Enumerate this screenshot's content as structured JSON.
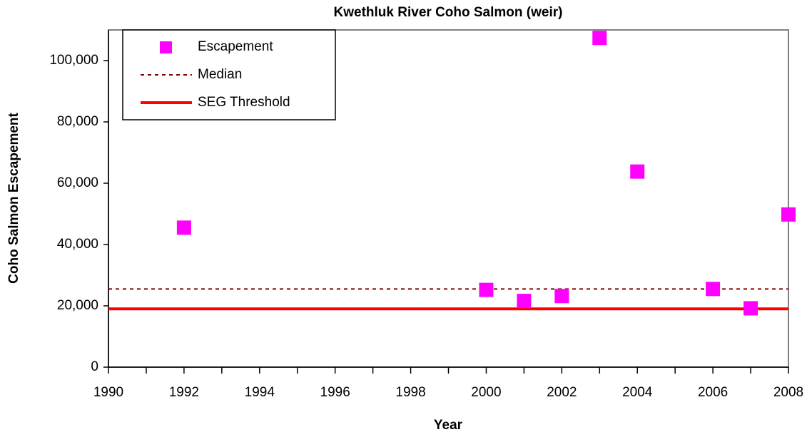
{
  "chart_data": {
    "type": "scatter",
    "title": "Kwethluk River Coho Salmon (weir)",
    "x_label": "Year",
    "y_label": "Coho Salmon Escapement",
    "xlim": [
      1990,
      2008
    ],
    "xticks": [
      1990,
      1992,
      1994,
      1996,
      1998,
      2000,
      2002,
      2004,
      2006,
      2008
    ],
    "ylim": [
      0,
      110000
    ],
    "yticks": [
      0,
      {
        "value": 20000,
        "label": "20,000"
      },
      {
        "value": 40000,
        "label": "40,000"
      },
      {
        "value": 60000,
        "label": "60,000"
      },
      {
        "value": 80000,
        "label": "80,000"
      },
      {
        "value": 100000,
        "label": "100,000"
      }
    ],
    "legend": "top-left",
    "series": [
      {
        "name": "Escapement",
        "color": "#ff00ff",
        "style": "marker",
        "x": [
          1992,
          2000,
          2001,
          2002,
          2003,
          2004,
          2006,
          2007,
          2008
        ],
        "values": [
          45500,
          25200,
          21600,
          23200,
          107400,
          63800,
          25500,
          19200,
          49800
        ]
      },
      {
        "name": "Median",
        "color": "#800000",
        "style": "dashed",
        "x": [
          1990,
          2008
        ],
        "values": [
          25500,
          25500
        ]
      },
      {
        "name": "SEG Threshold",
        "color": "#ff0000",
        "style": "solid",
        "x": [
          1990,
          2008
        ],
        "values": [
          19000,
          19000
        ]
      }
    ]
  }
}
